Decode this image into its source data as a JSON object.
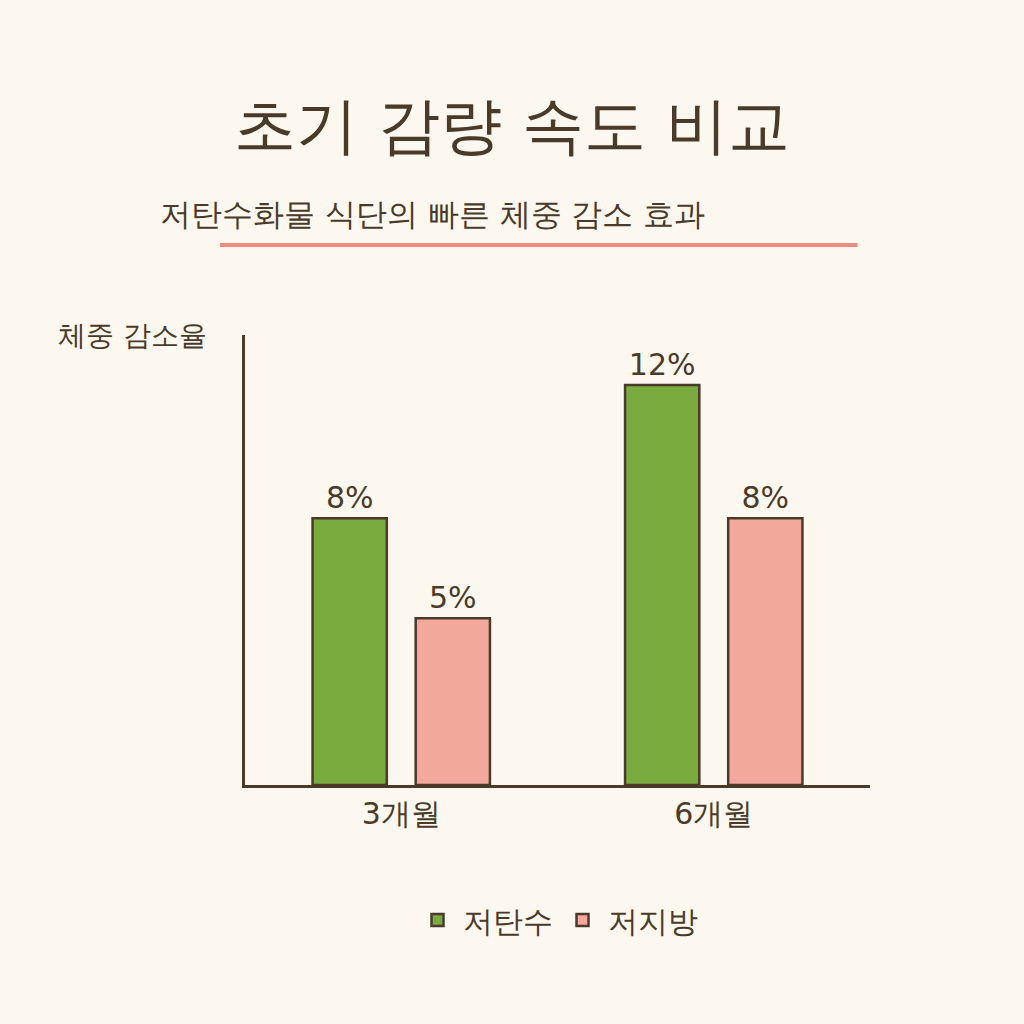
{
  "chart_data": {
    "type": "bar",
    "title": "초기 감량 속도 비교",
    "subtitle": "저탄수화물 식단의 빠른 체중 감소 효과",
    "ylabel": "체중 감소율",
    "categories": [
      "3개월",
      "6개월"
    ],
    "series": [
      {
        "name": "저탄수",
        "color": "#7aab3e",
        "values": [
          8,
          12
        ],
        "value_labels": [
          "8%",
          "12%"
        ]
      },
      {
        "name": "저지방",
        "color": "#f2a89a",
        "values": [
          5,
          8
        ],
        "value_labels": [
          "5%",
          "8%"
        ]
      }
    ],
    "ylim": [
      0,
      13.5
    ],
    "grid": false,
    "data_labels": true,
    "tick_labels": "x",
    "legend": "bottom"
  }
}
